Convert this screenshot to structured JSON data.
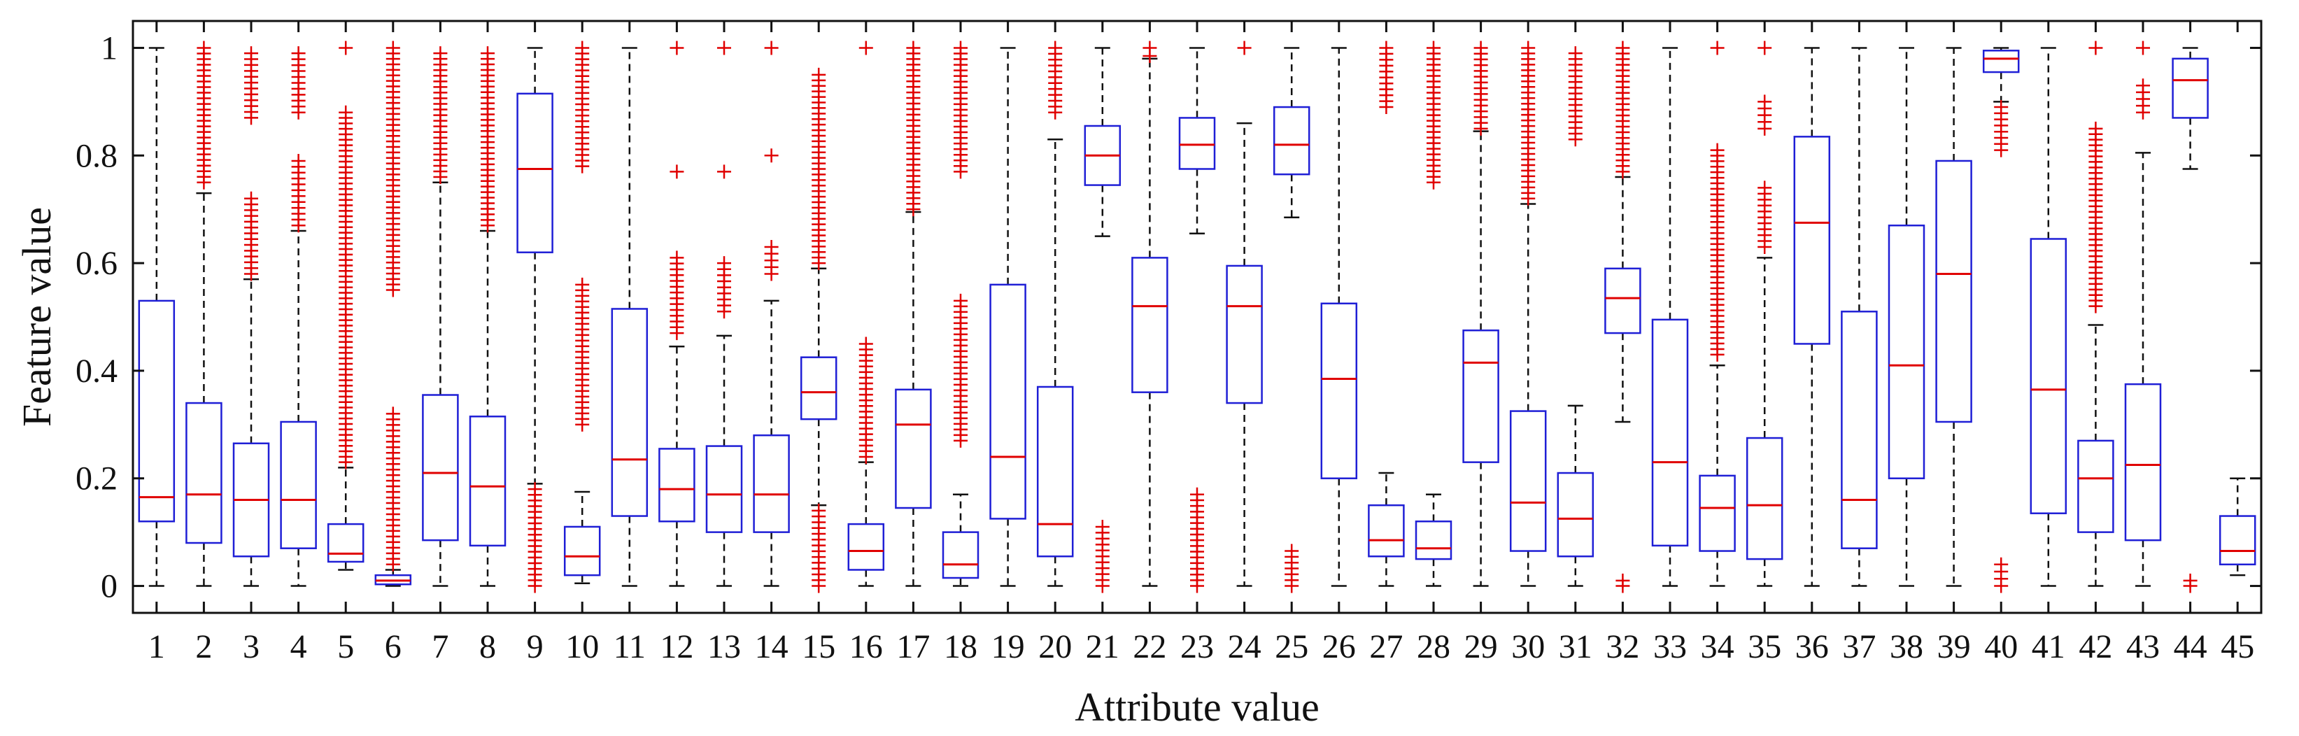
{
  "chart_data": {
    "type": "boxplot",
    "title": "",
    "xlabel": "Attribute value",
    "ylabel": "Feature value",
    "ylim": [
      -0.05,
      1.05
    ],
    "yticks": [
      0,
      0.2,
      0.4,
      0.6,
      0.8,
      1
    ],
    "ytick_labels": [
      "0",
      "0.2",
      "0.4",
      "0.6",
      "0.8",
      "1"
    ],
    "grid": false,
    "colors": {
      "box": "#1f1fd6",
      "median": "#e00000",
      "outlier": "#e00000",
      "whisker": "#111111",
      "axis": "#111111"
    },
    "categories": [
      "1",
      "2",
      "3",
      "4",
      "5",
      "6",
      "7",
      "8",
      "9",
      "10",
      "11",
      "12",
      "13",
      "14",
      "15",
      "16",
      "17",
      "18",
      "19",
      "20",
      "21",
      "22",
      "23",
      "24",
      "25",
      "26",
      "27",
      "28",
      "29",
      "30",
      "31",
      "32",
      "33",
      "34",
      "35",
      "36",
      "37",
      "38",
      "39",
      "40",
      "41",
      "42",
      "43",
      "44",
      "45"
    ],
    "boxes": [
      {
        "label": "1",
        "lower_whisker": 0,
        "q1": 0.12,
        "median": 0.165,
        "q3": 0.53,
        "upper_whisker": 1,
        "outlier_ranges": []
      },
      {
        "label": "2",
        "lower_whisker": 0,
        "q1": 0.08,
        "median": 0.17,
        "q3": 0.34,
        "upper_whisker": 0.73,
        "outlier_ranges": [
          [
            0.75,
            1.0
          ]
        ]
      },
      {
        "label": "3",
        "lower_whisker": 0,
        "q1": 0.055,
        "median": 0.16,
        "q3": 0.265,
        "upper_whisker": 0.57,
        "outlier_ranges": [
          [
            0.58,
            0.72
          ],
          [
            0.87,
            0.99
          ]
        ]
      },
      {
        "label": "4",
        "lower_whisker": 0,
        "q1": 0.07,
        "median": 0.16,
        "q3": 0.305,
        "upper_whisker": 0.66,
        "outlier_ranges": [
          [
            0.67,
            0.79
          ],
          [
            0.88,
            0.99
          ]
        ]
      },
      {
        "label": "5",
        "lower_whisker": 0.03,
        "q1": 0.045,
        "median": 0.06,
        "q3": 0.115,
        "upper_whisker": 0.22,
        "outlier_ranges": [
          [
            0.23,
            0.88
          ],
          [
            1.0,
            1.0
          ]
        ]
      },
      {
        "label": "6",
        "lower_whisker": 0,
        "q1": 0.003,
        "median": 0.01,
        "q3": 0.02,
        "upper_whisker": 0.03,
        "outlier_ranges": [
          [
            0.04,
            0.32
          ],
          [
            0.55,
            1.0
          ]
        ]
      },
      {
        "label": "7",
        "lower_whisker": 0,
        "q1": 0.085,
        "median": 0.21,
        "q3": 0.355,
        "upper_whisker": 0.75,
        "outlier_ranges": [
          [
            0.76,
            0.99
          ]
        ]
      },
      {
        "label": "8",
        "lower_whisker": 0,
        "q1": 0.075,
        "median": 0.185,
        "q3": 0.315,
        "upper_whisker": 0.66,
        "outlier_ranges": [
          [
            0.67,
            0.99
          ]
        ]
      },
      {
        "label": "9",
        "lower_whisker": 0.19,
        "q1": 0.62,
        "median": 0.775,
        "q3": 0.915,
        "upper_whisker": 1,
        "outlier_ranges": [
          [
            0.0,
            0.18
          ]
        ]
      },
      {
        "label": "10",
        "lower_whisker": 0.005,
        "q1": 0.02,
        "median": 0.055,
        "q3": 0.11,
        "upper_whisker": 0.175,
        "outlier_ranges": [
          [
            0.3,
            0.56
          ],
          [
            0.78,
            1.0
          ]
        ]
      },
      {
        "label": "11",
        "lower_whisker": 0,
        "q1": 0.13,
        "median": 0.235,
        "q3": 0.515,
        "upper_whisker": 1,
        "outlier_ranges": []
      },
      {
        "label": "12",
        "lower_whisker": 0,
        "q1": 0.12,
        "median": 0.18,
        "q3": 0.255,
        "upper_whisker": 0.445,
        "outlier_ranges": [
          [
            0.47,
            0.61
          ],
          [
            0.77,
            0.77
          ],
          [
            1.0,
            1.0
          ]
        ]
      },
      {
        "label": "13",
        "lower_whisker": 0,
        "q1": 0.1,
        "median": 0.17,
        "q3": 0.26,
        "upper_whisker": 0.465,
        "outlier_ranges": [
          [
            0.51,
            0.6
          ],
          [
            0.77,
            0.77
          ],
          [
            1.0,
            1.0
          ]
        ]
      },
      {
        "label": "14",
        "lower_whisker": 0,
        "q1": 0.1,
        "median": 0.17,
        "q3": 0.28,
        "upper_whisker": 0.53,
        "outlier_ranges": [
          [
            0.58,
            0.63
          ],
          [
            0.8,
            0.8
          ],
          [
            1.0,
            1.0
          ]
        ]
      },
      {
        "label": "15",
        "lower_whisker": 0.15,
        "q1": 0.31,
        "median": 0.36,
        "q3": 0.425,
        "upper_whisker": 0.59,
        "outlier_ranges": [
          [
            0.0,
            0.14
          ],
          [
            0.6,
            0.95
          ]
        ]
      },
      {
        "label": "16",
        "lower_whisker": 0,
        "q1": 0.03,
        "median": 0.065,
        "q3": 0.115,
        "upper_whisker": 0.23,
        "outlier_ranges": [
          [
            0.24,
            0.45
          ],
          [
            1.0,
            1.0
          ]
        ]
      },
      {
        "label": "17",
        "lower_whisker": 0,
        "q1": 0.145,
        "median": 0.3,
        "q3": 0.365,
        "upper_whisker": 0.695,
        "outlier_ranges": [
          [
            0.7,
            1.0
          ]
        ]
      },
      {
        "label": "18",
        "lower_whisker": 0,
        "q1": 0.015,
        "median": 0.04,
        "q3": 0.1,
        "upper_whisker": 0.17,
        "outlier_ranges": [
          [
            0.27,
            0.53
          ],
          [
            0.77,
            1.0
          ]
        ]
      },
      {
        "label": "19",
        "lower_whisker": 0,
        "q1": 0.125,
        "median": 0.24,
        "q3": 0.56,
        "upper_whisker": 1,
        "outlier_ranges": []
      },
      {
        "label": "20",
        "lower_whisker": 0,
        "q1": 0.055,
        "median": 0.115,
        "q3": 0.37,
        "upper_whisker": 0.83,
        "outlier_ranges": [
          [
            0.88,
            1.0
          ]
        ]
      },
      {
        "label": "21",
        "lower_whisker": 0.65,
        "q1": 0.745,
        "median": 0.8,
        "q3": 0.855,
        "upper_whisker": 1,
        "outlier_ranges": [
          [
            0.0,
            0.11
          ]
        ]
      },
      {
        "label": "22",
        "lower_whisker": 0,
        "q1": 0.36,
        "median": 0.52,
        "q3": 0.61,
        "upper_whisker": 0.98,
        "outlier_ranges": [
          [
            0.985,
            1.0
          ]
        ]
      },
      {
        "label": "23",
        "lower_whisker": 0.655,
        "q1": 0.775,
        "median": 0.82,
        "q3": 0.87,
        "upper_whisker": 1,
        "outlier_ranges": [
          [
            0.0,
            0.17
          ]
        ]
      },
      {
        "label": "24",
        "lower_whisker": 0,
        "q1": 0.34,
        "median": 0.52,
        "q3": 0.595,
        "upper_whisker": 0.86,
        "outlier_ranges": [
          [
            1.0,
            1.0
          ]
        ]
      },
      {
        "label": "25",
        "lower_whisker": 0.685,
        "q1": 0.765,
        "median": 0.82,
        "q3": 0.89,
        "upper_whisker": 1,
        "outlier_ranges": [
          [
            0.0,
            0.065
          ]
        ]
      },
      {
        "label": "26",
        "lower_whisker": 0,
        "q1": 0.2,
        "median": 0.385,
        "q3": 0.525,
        "upper_whisker": 1,
        "outlier_ranges": []
      },
      {
        "label": "27",
        "lower_whisker": 0,
        "q1": 0.055,
        "median": 0.085,
        "q3": 0.15,
        "upper_whisker": 0.21,
        "outlier_ranges": [
          [
            0.89,
            1.0
          ]
        ]
      },
      {
        "label": "28",
        "lower_whisker": 0,
        "q1": 0.05,
        "median": 0.07,
        "q3": 0.12,
        "upper_whisker": 0.17,
        "outlier_ranges": [
          [
            0.75,
            1.0
          ]
        ]
      },
      {
        "label": "29",
        "lower_whisker": 0,
        "q1": 0.23,
        "median": 0.415,
        "q3": 0.475,
        "upper_whisker": 0.845,
        "outlier_ranges": [
          [
            0.85,
            1.0
          ]
        ]
      },
      {
        "label": "30",
        "lower_whisker": 0,
        "q1": 0.065,
        "median": 0.155,
        "q3": 0.325,
        "upper_whisker": 0.71,
        "outlier_ranges": [
          [
            0.72,
            1.0
          ]
        ]
      },
      {
        "label": "31",
        "lower_whisker": 0,
        "q1": 0.055,
        "median": 0.125,
        "q3": 0.21,
        "upper_whisker": 0.335,
        "outlier_ranges": [
          [
            0.83,
            0.99
          ]
        ]
      },
      {
        "label": "32",
        "lower_whisker": 0.305,
        "q1": 0.47,
        "median": 0.535,
        "q3": 0.59,
        "upper_whisker": 0.76,
        "outlier_ranges": [
          [
            0.0,
            0.01
          ],
          [
            0.77,
            1.0
          ]
        ]
      },
      {
        "label": "33",
        "lower_whisker": 0,
        "q1": 0.075,
        "median": 0.23,
        "q3": 0.495,
        "upper_whisker": 1,
        "outlier_ranges": []
      },
      {
        "label": "34",
        "lower_whisker": 0,
        "q1": 0.065,
        "median": 0.145,
        "q3": 0.205,
        "upper_whisker": 0.41,
        "outlier_ranges": [
          [
            0.43,
            0.81
          ],
          [
            1.0,
            1.0
          ]
        ]
      },
      {
        "label": "35",
        "lower_whisker": 0,
        "q1": 0.05,
        "median": 0.15,
        "q3": 0.275,
        "upper_whisker": 0.61,
        "outlier_ranges": [
          [
            0.63,
            0.74
          ],
          [
            0.85,
            0.9
          ],
          [
            1.0,
            1.0
          ]
        ]
      },
      {
        "label": "36",
        "lower_whisker": 0,
        "q1": 0.45,
        "median": 0.675,
        "q3": 0.835,
        "upper_whisker": 1,
        "outlier_ranges": []
      },
      {
        "label": "37",
        "lower_whisker": 0,
        "q1": 0.07,
        "median": 0.16,
        "q3": 0.51,
        "upper_whisker": 1,
        "outlier_ranges": []
      },
      {
        "label": "38",
        "lower_whisker": 0,
        "q1": 0.2,
        "median": 0.41,
        "q3": 0.67,
        "upper_whisker": 1,
        "outlier_ranges": []
      },
      {
        "label": "39",
        "lower_whisker": 0,
        "q1": 0.305,
        "median": 0.58,
        "q3": 0.79,
        "upper_whisker": 1,
        "outlier_ranges": []
      },
      {
        "label": "40",
        "lower_whisker": 0.9,
        "q1": 0.955,
        "median": 0.98,
        "q3": 0.995,
        "upper_whisker": 1,
        "outlier_ranges": [
          [
            0.0,
            0.04
          ],
          [
            0.81,
            0.89
          ]
        ]
      },
      {
        "label": "41",
        "lower_whisker": 0,
        "q1": 0.135,
        "median": 0.365,
        "q3": 0.645,
        "upper_whisker": 1,
        "outlier_ranges": []
      },
      {
        "label": "42",
        "lower_whisker": 0,
        "q1": 0.1,
        "median": 0.2,
        "q3": 0.27,
        "upper_whisker": 0.485,
        "outlier_ranges": [
          [
            0.52,
            0.85
          ],
          [
            1.0,
            1.0
          ]
        ]
      },
      {
        "label": "43",
        "lower_whisker": 0,
        "q1": 0.085,
        "median": 0.225,
        "q3": 0.375,
        "upper_whisker": 0.805,
        "outlier_ranges": [
          [
            0.88,
            0.93
          ],
          [
            1.0,
            1.0
          ]
        ]
      },
      {
        "label": "44",
        "lower_whisker": 0.775,
        "q1": 0.87,
        "median": 0.94,
        "q3": 0.98,
        "upper_whisker": 1,
        "outlier_ranges": [
          [
            0.0,
            0.01
          ]
        ]
      },
      {
        "label": "45",
        "lower_whisker": 0.02,
        "q1": 0.04,
        "median": 0.065,
        "q3": 0.13,
        "upper_whisker": 0.2,
        "outlier_ranges": []
      }
    ]
  }
}
